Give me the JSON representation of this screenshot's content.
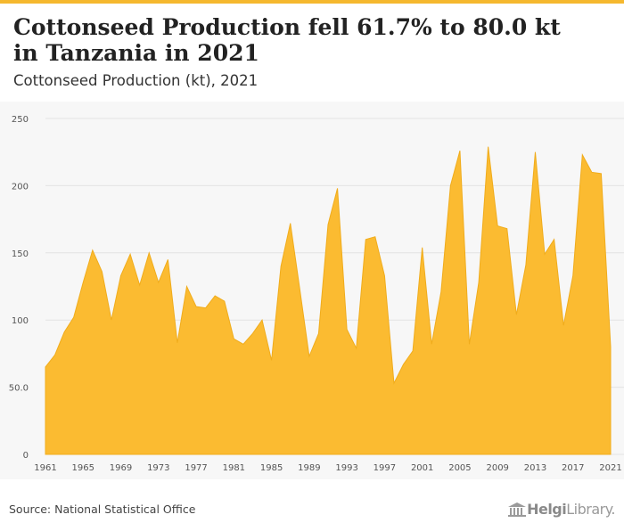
{
  "header": {
    "title": "Cottonseed Production fell 61.7% to 80.0 kt in Tanzania in 2021",
    "subtitle": "Cottonseed Production (kt), 2021"
  },
  "footer": {
    "source": "Source: National Statistical Office",
    "logo_text_bold": "Helgi",
    "logo_text_rest": "Library."
  },
  "colors": {
    "accent": "#f5b82e",
    "area_fill": "#fbbb31",
    "grid": "#e3e3e3"
  },
  "chart_data": {
    "type": "area",
    "title": "Cottonseed Production (kt), 2021",
    "xlabel": "",
    "ylabel": "",
    "ylim": [
      0,
      250
    ],
    "yticks": [
      0,
      50,
      100,
      150,
      200,
      250
    ],
    "ytick_labels": [
      "0",
      "50.0",
      "100",
      "150",
      "200",
      "250"
    ],
    "xticks": [
      1961,
      1965,
      1969,
      1973,
      1977,
      1981,
      1985,
      1989,
      1993,
      1997,
      2001,
      2005,
      2009,
      2013,
      2017,
      2021
    ],
    "grid": true,
    "x": [
      1961,
      1962,
      1963,
      1964,
      1965,
      1966,
      1967,
      1968,
      1969,
      1970,
      1971,
      1972,
      1973,
      1974,
      1975,
      1976,
      1977,
      1978,
      1979,
      1980,
      1981,
      1982,
      1983,
      1984,
      1985,
      1986,
      1987,
      1988,
      1989,
      1990,
      1991,
      1992,
      1993,
      1994,
      1995,
      1996,
      1997,
      1998,
      1999,
      2000,
      2001,
      2002,
      2003,
      2004,
      2005,
      2006,
      2007,
      2008,
      2009,
      2010,
      2011,
      2012,
      2013,
      2014,
      2015,
      2016,
      2017,
      2018,
      2019,
      2020,
      2021
    ],
    "values": [
      65,
      74,
      91,
      102,
      128,
      152,
      136,
      100,
      133,
      149,
      126,
      150,
      128,
      145,
      83,
      125,
      110,
      109,
      118,
      114,
      86,
      82,
      90,
      100,
      70,
      140,
      172,
      123,
      73,
      90,
      171,
      198,
      93,
      79,
      160,
      162,
      133,
      53,
      67,
      77,
      154,
      82,
      121,
      200,
      226,
      82,
      128,
      229,
      170,
      168,
      104,
      141,
      225,
      149,
      160,
      96,
      133,
      223,
      210,
      209,
      80
    ]
  }
}
